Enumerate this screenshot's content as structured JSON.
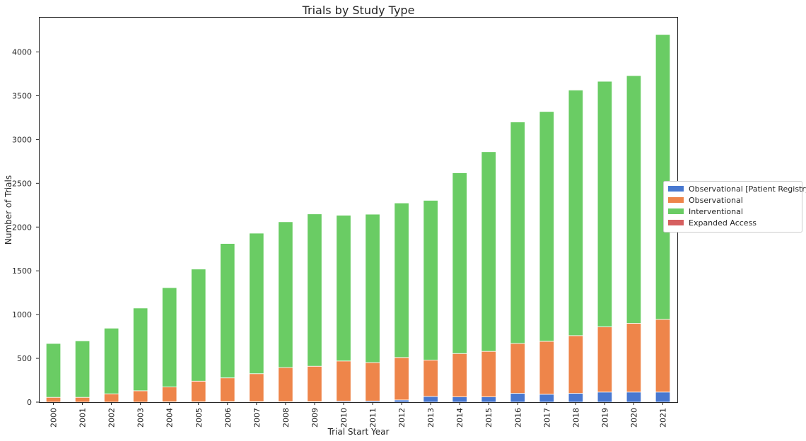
{
  "chart_data": {
    "type": "bar",
    "stacked": true,
    "title": "Trials by Study Type",
    "xlabel": "Trial Start Year",
    "ylabel": "Number of Trials",
    "ylim": [
      0,
      4400
    ],
    "yticks": [
      0,
      500,
      1000,
      1500,
      2000,
      2500,
      3000,
      3500,
      4000
    ],
    "grid": false,
    "legend_position": "right",
    "categories": [
      "2000",
      "2001",
      "2002",
      "2003",
      "2004",
      "2005",
      "2006",
      "2007",
      "2008",
      "2009",
      "2010",
      "2011",
      "2012",
      "2013",
      "2014",
      "2015",
      "2016",
      "2017",
      "2018",
      "2019",
      "2020",
      "2021"
    ],
    "series": [
      {
        "name": "Observational [Patient Registry]",
        "color": "#4878d0",
        "values": [
          0,
          0,
          0,
          0,
          3,
          3,
          5,
          5,
          5,
          5,
          10,
          12,
          25,
          65,
          60,
          60,
          100,
          90,
          100,
          115,
          115,
          115
        ]
      },
      {
        "name": "Observational",
        "color": "#ee854a",
        "values": [
          55,
          55,
          95,
          130,
          170,
          237,
          272,
          320,
          390,
          405,
          460,
          440,
          485,
          415,
          495,
          520,
          570,
          605,
          660,
          745,
          785,
          830
        ]
      },
      {
        "name": "Interventional",
        "color": "#6acc64",
        "values": [
          615,
          645,
          750,
          945,
          1135,
          1280,
          1535,
          1605,
          1665,
          1740,
          1665,
          1695,
          1765,
          1825,
          2065,
          2280,
          2530,
          2625,
          2805,
          2805,
          2830,
          3255
        ]
      },
      {
        "name": "Expanded Access",
        "color": "#d65f5f",
        "values": [
          0,
          0,
          0,
          0,
          0,
          0,
          0,
          0,
          0,
          0,
          0,
          0,
          0,
          0,
          0,
          0,
          0,
          0,
          0,
          0,
          0,
          0
        ]
      }
    ]
  }
}
